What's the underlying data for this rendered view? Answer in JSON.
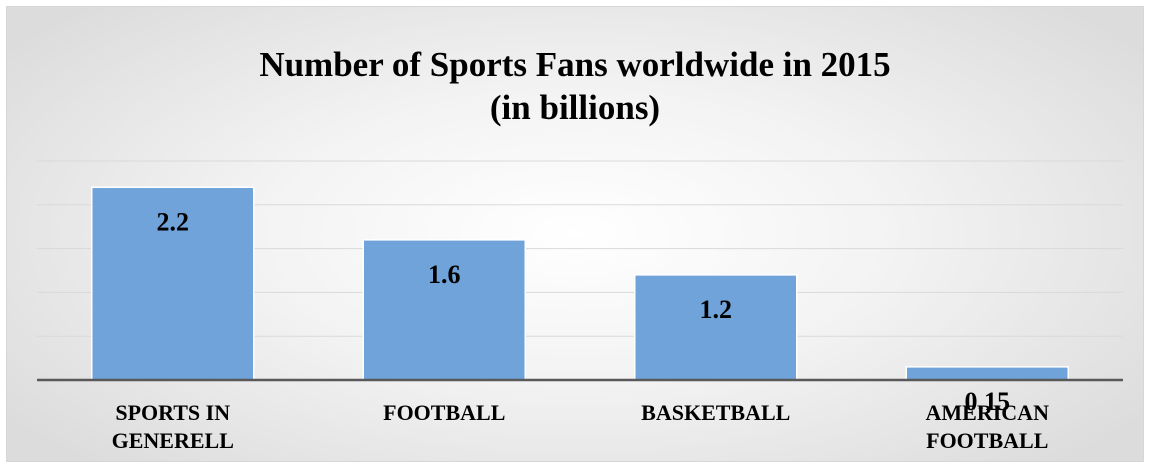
{
  "chart_data": {
    "type": "bar",
    "title_lines": [
      "Number of Sports Fans worldwide in 2015",
      "(in billions)"
    ],
    "categories": [
      [
        "SPORTS IN",
        "GENERELL"
      ],
      [
        "FOOTBALL"
      ],
      [
        "BASKETBALL"
      ],
      [
        "AMERICAN",
        "FOOTBALL"
      ]
    ],
    "values": [
      2.2,
      1.6,
      1.2,
      0.15
    ],
    "data_labels": [
      "2.2",
      "1.6",
      "1.2",
      "0.15"
    ],
    "xlabel": "",
    "ylabel": "",
    "ylim": [
      0,
      2.5
    ],
    "grid": true,
    "gridline_step": 0.5,
    "legend": "none",
    "colors": {
      "bar_fill": "#6fa3da",
      "bar_border": "#ffffff",
      "gridline": "#d9d9d9",
      "axis_line": "#595959",
      "text": "#000000"
    }
  }
}
